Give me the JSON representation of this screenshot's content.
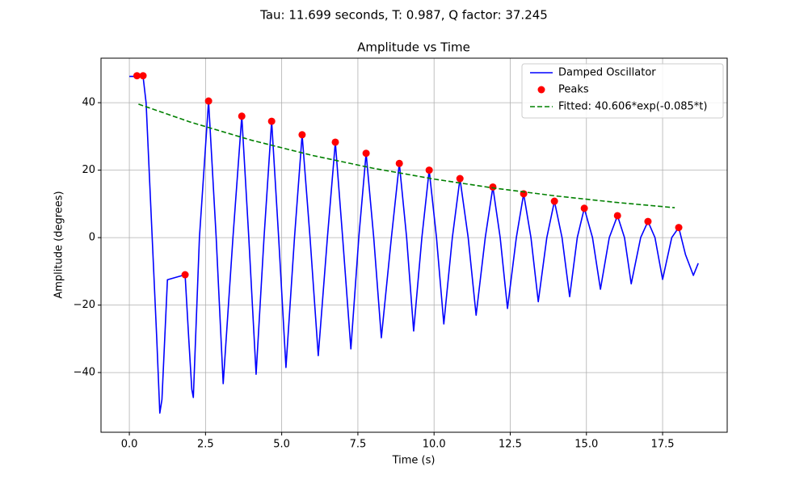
{
  "chart_data": {
    "type": "line",
    "suptitle": "Tau: 11.699 seconds, T: 0.987, Q factor: 37.245",
    "title": "Amplitude vs Time",
    "x_label": "Time (s)",
    "y_label": "Amplitude (degrees)",
    "xlim": [
      -0.93,
      19.62
    ],
    "ylim": [
      -57.7,
      53.2
    ],
    "xticks": [
      {
        "value": 0,
        "label": "0.0"
      },
      2.5,
      {
        "value": 5,
        "label": "5.0"
      },
      7.5,
      {
        "value": 10,
        "label": "10.0"
      },
      12.5,
      {
        "value": 15,
        "label": "15.0"
      },
      17.5
    ],
    "yticks": [
      {
        "value": -40,
        "label": "−40"
      },
      {
        "value": -20,
        "label": "−20"
      },
      0,
      20,
      40
    ],
    "grid": true,
    "legend": "upper right",
    "series": [
      {
        "name": "Damped Oscillator",
        "color": "#0000ff",
        "style": "solid",
        "x": [
          0,
          0.25,
          0.45,
          0.55,
          0.75,
          0.9,
          1.0,
          1.07,
          1.25,
          1.83,
          1.95,
          2.05,
          2.1,
          2.3,
          2.6,
          2.85,
          3.08,
          3.4,
          3.69,
          3.92,
          4.16,
          4.42,
          4.67,
          4.9,
          5.14,
          5.42,
          5.67,
          5.93,
          6.2,
          6.5,
          6.76,
          7.0,
          7.27,
          7.53,
          7.77,
          8.02,
          8.27,
          8.6,
          8.86,
          9.1,
          9.33,
          9.6,
          9.84,
          10.08,
          10.32,
          10.6,
          10.85,
          11.12,
          11.38,
          11.68,
          11.93,
          12.17,
          12.41,
          12.7,
          12.94,
          13.18,
          13.42,
          13.7,
          13.95,
          14.2,
          14.45,
          14.7,
          14.93,
          15.2,
          15.46,
          15.75,
          16.02,
          16.25,
          16.47,
          16.78,
          17.02,
          17.25,
          17.5,
          17.8,
          18.03,
          18.25,
          18.51,
          18.67
        ],
        "values": [
          47.8,
          47.8,
          47.8,
          40,
          0,
          -30,
          -52,
          -48,
          -12.5,
          -11,
          -30,
          -45,
          -47.4,
          0,
          40.5,
          0,
          -43.3,
          0,
          36,
          0,
          -40.5,
          0,
          34.5,
          0,
          -38.5,
          0,
          30.5,
          0,
          -35,
          0,
          28.3,
          0,
          -33,
          0,
          25,
          0,
          -29.7,
          0,
          22,
          0,
          -27.7,
          0,
          20,
          0,
          -25.6,
          0,
          17.5,
          0,
          -23,
          0,
          15,
          0,
          -21,
          0,
          13,
          0,
          -19,
          0,
          10.8,
          0,
          -17.5,
          0,
          8.7,
          0,
          -15.3,
          0,
          6.5,
          0,
          -13.7,
          0,
          4.8,
          0,
          -12.4,
          0,
          3,
          -5,
          -11.2,
          -7.6
        ]
      },
      {
        "name": "Peaks",
        "color": "#ff0000",
        "style": "markers",
        "x": [
          0.25,
          0.45,
          1.83,
          2.6,
          3.69,
          4.67,
          5.67,
          6.76,
          7.77,
          8.86,
          9.84,
          10.85,
          11.93,
          12.94,
          13.95,
          14.93,
          16.02,
          17.02,
          18.03
        ],
        "values": [
          48,
          48,
          -11,
          40.5,
          36,
          34.5,
          30.5,
          28.3,
          25,
          22,
          20,
          17.5,
          15,
          13,
          10.8,
          8.7,
          6.5,
          4.8,
          3
        ]
      },
      {
        "name": "Fitted: 40.606*exp(-0.085*t)",
        "color": "#008000",
        "style": "dashed",
        "x": [
          0.3,
          2,
          4,
          6,
          8,
          10,
          12,
          14,
          16,
          17.9
        ],
        "values": [
          39.58,
          34.26,
          28.9,
          24.38,
          20.57,
          17.36,
          14.64,
          12.35,
          10.42,
          8.87
        ]
      }
    ]
  }
}
